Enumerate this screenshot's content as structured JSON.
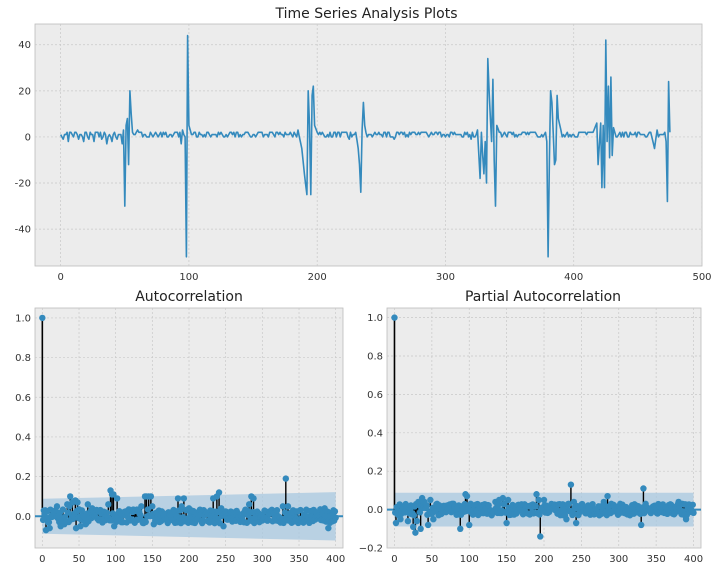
{
  "figure": {
    "background": "#ffffff",
    "axes_background": "#ececec",
    "grid_color": "#c8c8c8",
    "line_color": "#348abd",
    "band_color": "#a8c8e0"
  },
  "chart_data": [
    {
      "type": "line",
      "title": "Time Series Analysis Plots",
      "xlim": [
        -20,
        500
      ],
      "ylim": [
        -56,
        49
      ],
      "xticks": [
        0,
        100,
        200,
        300,
        400,
        500
      ],
      "yticks": [
        -40,
        -20,
        0,
        20,
        40
      ],
      "grid": true,
      "baseline": 1,
      "series": [
        {
          "points": [
            [
              0,
              1
            ],
            [
              2,
              -1
            ],
            [
              4,
              1
            ],
            [
              6,
              -2
            ],
            [
              8,
              2
            ],
            [
              10,
              0
            ],
            [
              12,
              2
            ],
            [
              14,
              -1
            ],
            [
              16,
              1
            ],
            [
              18,
              -2
            ],
            [
              20,
              2
            ],
            [
              22,
              -1
            ],
            [
              24,
              1
            ],
            [
              26,
              -2
            ],
            [
              28,
              2
            ],
            [
              30,
              0
            ],
            [
              32,
              -1
            ],
            [
              34,
              2
            ],
            [
              36,
              -3
            ],
            [
              38,
              1
            ],
            [
              40,
              -2
            ],
            [
              42,
              2
            ],
            [
              44,
              -1
            ],
            [
              46,
              1
            ],
            [
              48,
              -3
            ],
            [
              49,
              3
            ],
            [
              50,
              -30
            ],
            [
              51,
              5
            ],
            [
              52,
              8
            ],
            [
              53,
              -12
            ],
            [
              54,
              20
            ],
            [
              55,
              10
            ],
            [
              56,
              2
            ],
            [
              60,
              3
            ],
            [
              65,
              1
            ],
            [
              70,
              2
            ],
            [
              75,
              1
            ],
            [
              80,
              2
            ],
            [
              85,
              1
            ],
            [
              90,
              2
            ],
            [
              94,
              -3
            ],
            [
              95,
              3
            ],
            [
              96,
              1
            ],
            [
              97,
              0
            ],
            [
              98,
              -52
            ],
            [
              99,
              44
            ],
            [
              100,
              5
            ],
            [
              102,
              1
            ],
            [
              105,
              2
            ],
            [
              110,
              1
            ],
            [
              115,
              2
            ],
            [
              120,
              1
            ],
            [
              125,
              2
            ],
            [
              130,
              0
            ],
            [
              135,
              2
            ],
            [
              140,
              1
            ],
            [
              145,
              2
            ],
            [
              150,
              1
            ],
            [
              155,
              2
            ],
            [
              160,
              1
            ],
            [
              165,
              2
            ],
            [
              170,
              1
            ],
            [
              175,
              2
            ],
            [
              180,
              1
            ],
            [
              185,
              3
            ],
            [
              188,
              -5
            ],
            [
              190,
              -16
            ],
            [
              192,
              -25
            ],
            [
              193,
              20
            ],
            [
              194,
              5
            ],
            [
              195,
              -25
            ],
            [
              196,
              18
            ],
            [
              197,
              22
            ],
            [
              198,
              5
            ],
            [
              200,
              2
            ],
            [
              205,
              1
            ],
            [
              210,
              2
            ],
            [
              215,
              0
            ],
            [
              220,
              2
            ],
            [
              225,
              -1
            ],
            [
              230,
              2
            ],
            [
              232,
              -5
            ],
            [
              233,
              -12
            ],
            [
              234,
              -24
            ],
            [
              235,
              3
            ],
            [
              236,
              15
            ],
            [
              237,
              5
            ],
            [
              238,
              2
            ],
            [
              240,
              1
            ],
            [
              245,
              2
            ],
            [
              250,
              1
            ],
            [
              255,
              2
            ],
            [
              260,
              -1
            ],
            [
              265,
              2
            ],
            [
              270,
              1
            ],
            [
              275,
              2
            ],
            [
              280,
              1
            ],
            [
              285,
              2
            ],
            [
              290,
              1
            ],
            [
              295,
              2
            ],
            [
              300,
              0
            ],
            [
              305,
              2
            ],
            [
              310,
              1
            ],
            [
              315,
              2
            ],
            [
              320,
              -1
            ],
            [
              325,
              3
            ],
            [
              327,
              -18
            ],
            [
              328,
              2
            ],
            [
              329,
              -8
            ],
            [
              330,
              -16
            ],
            [
              331,
              -2
            ],
            [
              332,
              -20
            ],
            [
              333,
              34
            ],
            [
              334,
              20
            ],
            [
              335,
              8
            ],
            [
              336,
              -2
            ],
            [
              337,
              25
            ],
            [
              338,
              -10
            ],
            [
              339,
              -30
            ],
            [
              340,
              5
            ],
            [
              342,
              2
            ],
            [
              345,
              1
            ],
            [
              350,
              2
            ],
            [
              355,
              1
            ],
            [
              360,
              2
            ],
            [
              365,
              1
            ],
            [
              370,
              2
            ],
            [
              375,
              1
            ],
            [
              378,
              2
            ],
            [
              379,
              -2
            ],
            [
              380,
              -52
            ],
            [
              381,
              -10
            ],
            [
              382,
              20
            ],
            [
              383,
              15
            ],
            [
              384,
              2
            ],
            [
              385,
              -12
            ],
            [
              386,
              -10
            ],
            [
              387,
              18
            ],
            [
              388,
              8
            ],
            [
              390,
              3
            ],
            [
              395,
              2
            ],
            [
              400,
              1
            ],
            [
              405,
              2
            ],
            [
              410,
              1
            ],
            [
              415,
              2
            ],
            [
              418,
              6
            ],
            [
              419,
              -12
            ],
            [
              420,
              -3
            ],
            [
              421,
              6
            ],
            [
              422,
              -22
            ],
            [
              423,
              5
            ],
            [
              424,
              -22
            ],
            [
              425,
              42
            ],
            [
              426,
              -2
            ],
            [
              427,
              22
            ],
            [
              428,
              -9
            ],
            [
              429,
              26
            ],
            [
              430,
              -8
            ],
            [
              431,
              4
            ],
            [
              432,
              2
            ],
            [
              435,
              1
            ],
            [
              440,
              2
            ],
            [
              445,
              1
            ],
            [
              450,
              2
            ],
            [
              455,
              1
            ],
            [
              460,
              2
            ],
            [
              463,
              -5
            ],
            [
              465,
              3
            ],
            [
              470,
              1
            ],
            [
              472,
              -2
            ],
            [
              473,
              -28
            ],
            [
              474,
              24
            ],
            [
              475,
              2
            ]
          ]
        }
      ]
    },
    {
      "type": "stem",
      "title": "Autocorrelation",
      "xlim": [
        -10,
        410
      ],
      "ylim": [
        -0.16,
        1.05
      ],
      "xticks": [
        0,
        50,
        100,
        150,
        200,
        250,
        300,
        350,
        400
      ],
      "yticks": [
        0.0,
        0.2,
        0.4,
        0.6,
        0.8,
        1.0
      ],
      "ytick_labels": [
        "0.0",
        "0.2",
        "0.4",
        "0.6",
        "0.8",
        "1.0"
      ],
      "grid": true,
      "confidence_band": {
        "start": [
          0,
          0.088
        ],
        "end": [
          400,
          0.122
        ]
      },
      "lag0": 1.0,
      "spikes": {
        "5": -0.07,
        "10": -0.06,
        "18": 0.03,
        "20": 0.05,
        "25": -0.05,
        "30": -0.04,
        "34": 0.06,
        "37": 0.05,
        "38": 0.1,
        "41": 0.07,
        "45": 0.08,
        "46": -0.06,
        "48": 0.07,
        "52": -0.05,
        "59": -0.04,
        "62": 0.06,
        "68": 0.04,
        "90": 0.06,
        "93": 0.13,
        "95": 0.11,
        "97": 0.11,
        "98": -0.05,
        "102": 0.09,
        "108": -0.03,
        "135": 0.05,
        "140": 0.1,
        "142": 0.1,
        "145": 0.1,
        "148": 0.1,
        "150": 0.05,
        "152": -0.04,
        "185": 0.09,
        "190": 0.05,
        "193": 0.09,
        "200": 0.04,
        "233": 0.09,
        "238": 0.1,
        "241": 0.12,
        "244": 0.04,
        "247": -0.05,
        "282": 0.06,
        "285": 0.1,
        "288": 0.09,
        "328": 0.05,
        "332": 0.19,
        "335": 0.05,
        "385": 0.04,
        "390": -0.06
      },
      "noise": {
        "count": 400,
        "amp": 0.035,
        "seed": 7
      }
    },
    {
      "type": "stem",
      "title": "Partial Autocorrelation",
      "xlim": [
        -10,
        410
      ],
      "ylim": [
        -0.2,
        1.05
      ],
      "xticks": [
        0,
        50,
        100,
        150,
        200,
        250,
        300,
        350,
        400
      ],
      "yticks": [
        -0.2,
        0.0,
        0.2,
        0.4,
        0.6,
        0.8,
        1.0
      ],
      "ytick_labels": [
        "−0.2",
        "0.0",
        "0.2",
        "0.4",
        "0.6",
        "0.8",
        "1.0"
      ],
      "grid": true,
      "confidence_band": {
        "start": [
          0,
          0.088
        ],
        "end": [
          400,
          0.088
        ]
      },
      "lag0": 1.0,
      "spikes": {
        "2": -0.07,
        "8": -0.05,
        "18": -0.06,
        "25": -0.09,
        "28": -0.12,
        "30": -0.06,
        "32": 0.04,
        "35": -0.1,
        "37": 0.06,
        "40": 0.04,
        "45": -0.08,
        "48": 0.05,
        "52": -0.05,
        "57": 0.03,
        "88": -0.1,
        "95": 0.08,
        "97": 0.07,
        "100": -0.08,
        "102": 0.03,
        "135": 0.04,
        "140": 0.05,
        "145": 0.06,
        "150": -0.07,
        "152": 0.05,
        "190": 0.08,
        "193": 0.05,
        "195": -0.14,
        "200": 0.05,
        "230": -0.05,
        "233": 0.03,
        "236": 0.13,
        "240": 0.04,
        "243": -0.07,
        "280": 0.04,
        "285": 0.07,
        "290": 0.03,
        "330": -0.08,
        "333": 0.11,
        "336": 0.03,
        "380": 0.04,
        "385": 0.03,
        "390": -0.05
      },
      "noise": {
        "count": 400,
        "amp": 0.03,
        "seed": 13
      }
    }
  ]
}
